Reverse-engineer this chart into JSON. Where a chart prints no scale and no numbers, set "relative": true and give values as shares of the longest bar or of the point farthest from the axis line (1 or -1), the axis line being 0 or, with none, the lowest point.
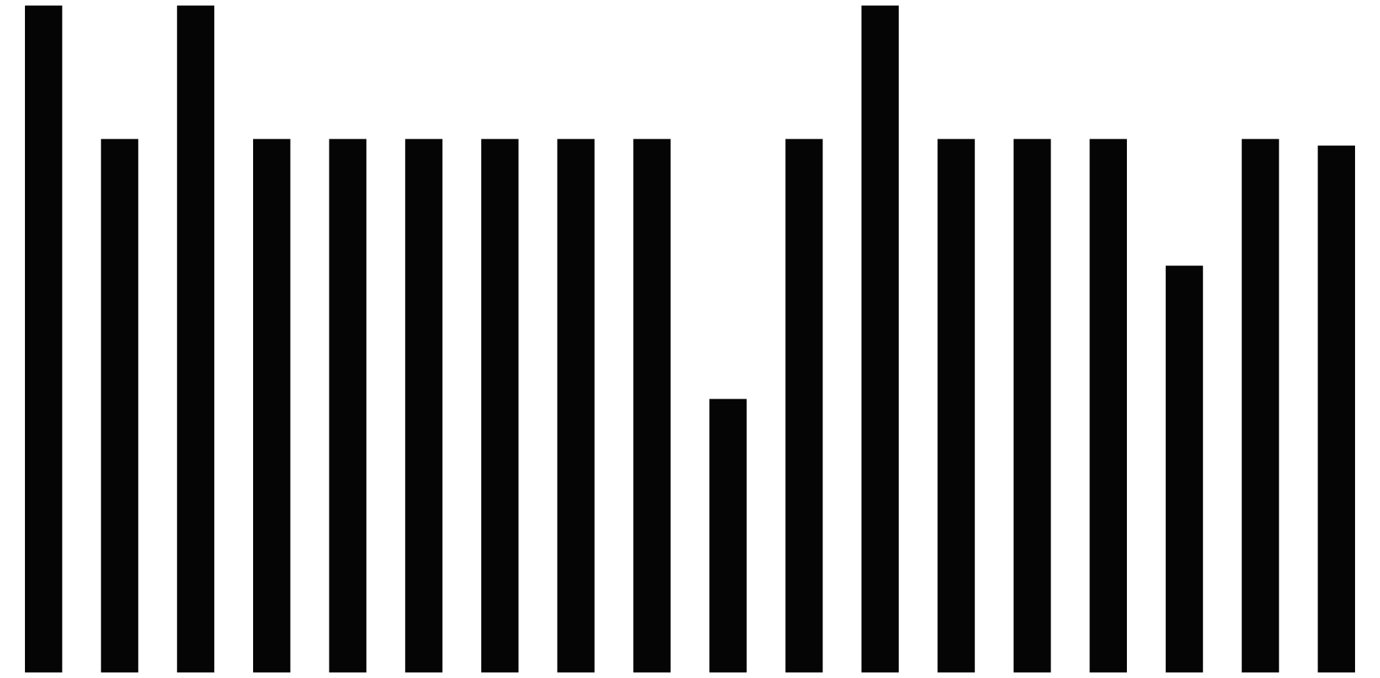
{
  "chart_data": {
    "type": "bar",
    "relative": true,
    "categories": [
      null,
      null,
      null,
      null,
      null,
      null,
      null,
      null,
      null,
      null,
      null,
      null,
      null,
      null,
      null,
      null,
      null,
      null
    ],
    "values": [
      1,
      0.8,
      1,
      0.8,
      0.8,
      0.8,
      0.8,
      0.8,
      0.8,
      0.41,
      0.8,
      1,
      0.8,
      0.8,
      0.8,
      0.61,
      0.8,
      0.79
    ],
    "color": "#050505"
  }
}
